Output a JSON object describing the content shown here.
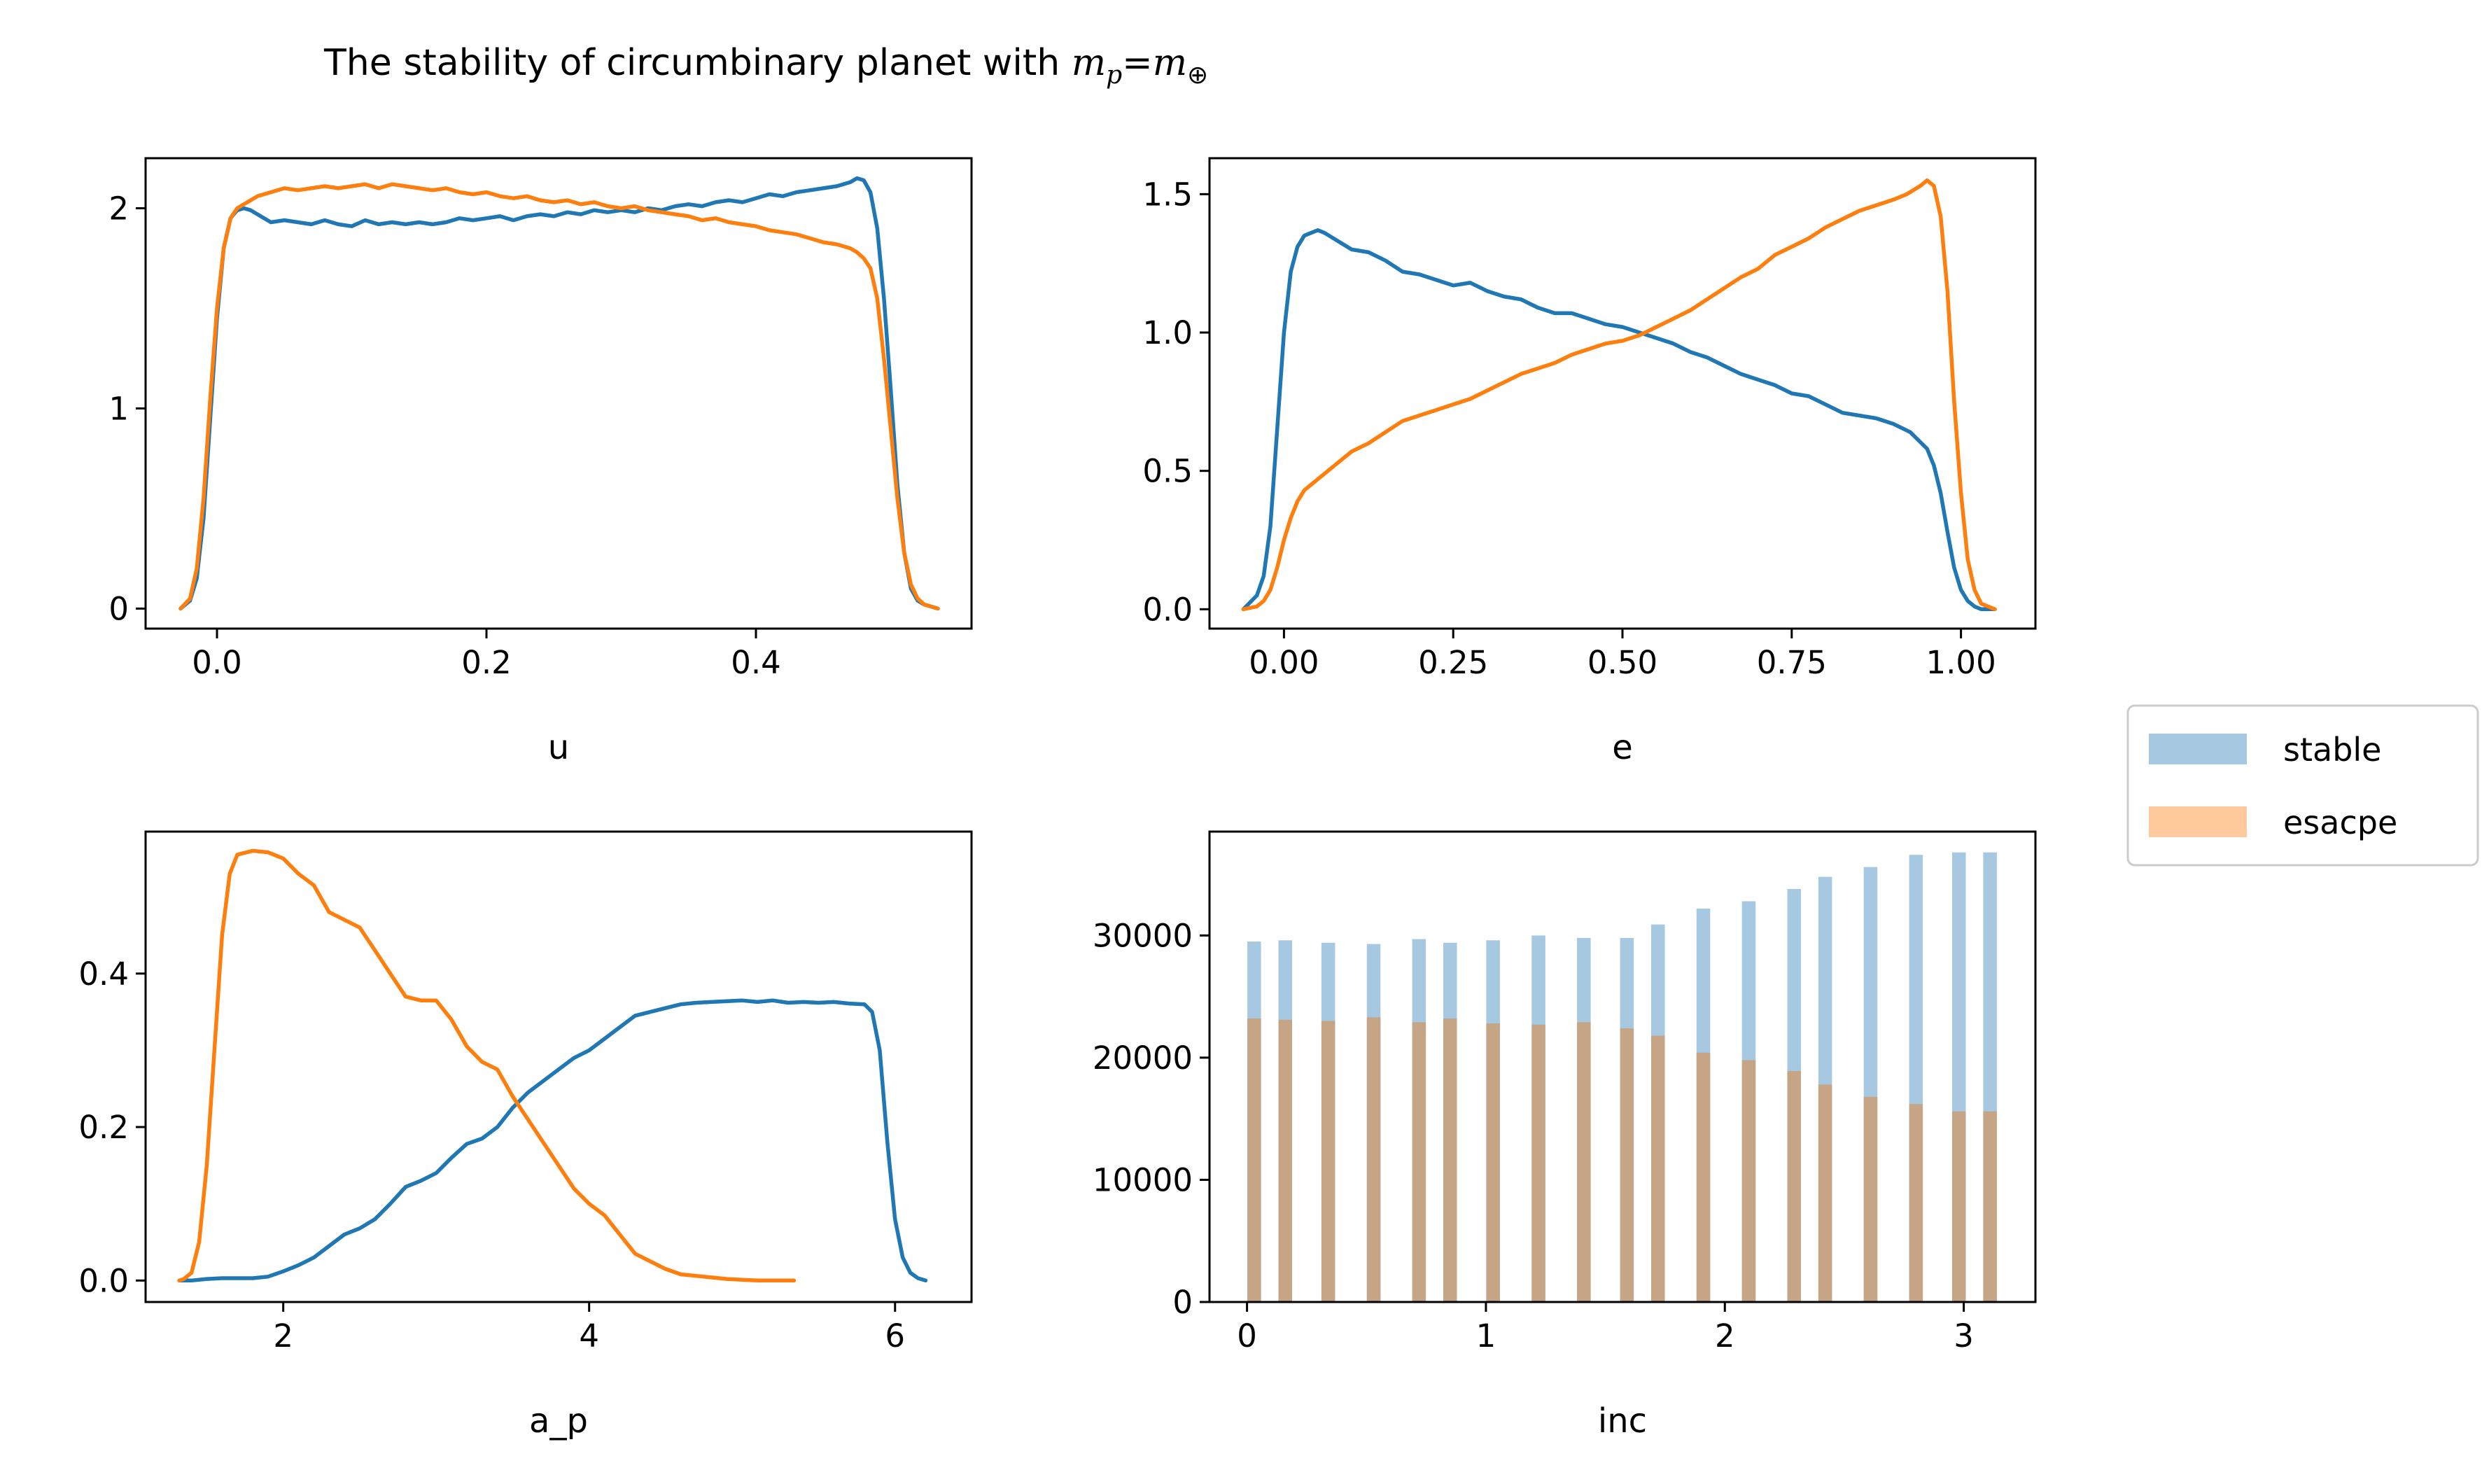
{
  "figure": {
    "title_prefix": "The stability of circumbinary planet with ",
    "title_math_lhs": "m",
    "title_math_lhs_sub": "p",
    "title_equals": "=",
    "title_math_rhs": "m",
    "title_math_rhs_sub": "⊕"
  },
  "colors": {
    "stable": "#1f77b4",
    "escape": "#ff7f0e",
    "stable_bar": "#a6c8e1",
    "escape_bar": "#c6a586"
  },
  "legend": {
    "placement": "right",
    "entries": [
      {
        "label": "stable",
        "color": "#a6c8e1"
      },
      {
        "label": "esacpe",
        "color": "#ffc99e"
      }
    ]
  },
  "chart_data": [
    {
      "type": "line",
      "xlabel": "u",
      "ylabel": "",
      "xlim": [
        -0.053,
        0.56
      ],
      "ylim": [
        -0.1,
        2.25
      ],
      "xticks": [
        0.0,
        0.2,
        0.4
      ],
      "xtick_labels": [
        "0.0",
        "0.2",
        "0.4"
      ],
      "yticks": [
        0,
        1,
        2
      ],
      "ytick_labels": [
        "0",
        "1",
        "2"
      ],
      "series": [
        {
          "key": "stable",
          "color": "#1f77b4",
          "x": [
            -0.027,
            -0.02,
            -0.015,
            -0.01,
            -0.005,
            0.0,
            0.005,
            0.01,
            0.015,
            0.02,
            0.025,
            0.03,
            0.04,
            0.05,
            0.06,
            0.07,
            0.08,
            0.09,
            0.1,
            0.11,
            0.12,
            0.13,
            0.14,
            0.15,
            0.16,
            0.17,
            0.18,
            0.19,
            0.2,
            0.21,
            0.22,
            0.23,
            0.24,
            0.25,
            0.26,
            0.27,
            0.28,
            0.29,
            0.3,
            0.31,
            0.32,
            0.33,
            0.34,
            0.35,
            0.36,
            0.37,
            0.38,
            0.39,
            0.4,
            0.41,
            0.42,
            0.43,
            0.44,
            0.45,
            0.46,
            0.47,
            0.475,
            0.48,
            0.485,
            0.49,
            0.495,
            0.5,
            0.505,
            0.51,
            0.515,
            0.52,
            0.525,
            0.53,
            0.535
          ],
          "y": [
            0.0,
            0.04,
            0.15,
            0.45,
            0.95,
            1.45,
            1.8,
            1.95,
            1.99,
            2.0,
            1.99,
            1.97,
            1.93,
            1.94,
            1.93,
            1.92,
            1.94,
            1.92,
            1.91,
            1.94,
            1.92,
            1.93,
            1.92,
            1.93,
            1.92,
            1.93,
            1.95,
            1.94,
            1.95,
            1.96,
            1.94,
            1.96,
            1.97,
            1.96,
            1.98,
            1.97,
            1.99,
            1.98,
            1.99,
            1.98,
            2.0,
            1.99,
            2.01,
            2.02,
            2.01,
            2.03,
            2.04,
            2.03,
            2.05,
            2.07,
            2.06,
            2.08,
            2.09,
            2.1,
            2.11,
            2.13,
            2.15,
            2.14,
            2.08,
            1.9,
            1.55,
            1.1,
            0.62,
            0.28,
            0.1,
            0.04,
            0.02,
            0.01,
            0.0
          ]
        },
        {
          "key": "escape",
          "color": "#ff7f0e",
          "x": [
            -0.027,
            -0.02,
            -0.015,
            -0.01,
            -0.005,
            0.0,
            0.005,
            0.01,
            0.015,
            0.02,
            0.025,
            0.03,
            0.04,
            0.05,
            0.06,
            0.07,
            0.08,
            0.09,
            0.1,
            0.11,
            0.12,
            0.13,
            0.14,
            0.15,
            0.16,
            0.17,
            0.18,
            0.19,
            0.2,
            0.21,
            0.22,
            0.23,
            0.24,
            0.25,
            0.26,
            0.27,
            0.28,
            0.29,
            0.3,
            0.31,
            0.32,
            0.33,
            0.34,
            0.35,
            0.36,
            0.37,
            0.38,
            0.39,
            0.4,
            0.41,
            0.42,
            0.43,
            0.44,
            0.45,
            0.46,
            0.47,
            0.475,
            0.48,
            0.485,
            0.49,
            0.495,
            0.5,
            0.505,
            0.51,
            0.515,
            0.52,
            0.525,
            0.53,
            0.535
          ],
          "y": [
            0.0,
            0.05,
            0.2,
            0.55,
            1.05,
            1.5,
            1.8,
            1.95,
            2.0,
            2.02,
            2.04,
            2.06,
            2.08,
            2.1,
            2.09,
            2.1,
            2.11,
            2.1,
            2.11,
            2.12,
            2.1,
            2.12,
            2.11,
            2.1,
            2.09,
            2.1,
            2.08,
            2.07,
            2.08,
            2.06,
            2.05,
            2.06,
            2.04,
            2.03,
            2.04,
            2.02,
            2.03,
            2.01,
            2.0,
            2.01,
            1.99,
            1.98,
            1.97,
            1.96,
            1.94,
            1.95,
            1.93,
            1.92,
            1.91,
            1.89,
            1.88,
            1.87,
            1.85,
            1.83,
            1.82,
            1.8,
            1.78,
            1.75,
            1.7,
            1.55,
            1.25,
            0.9,
            0.55,
            0.28,
            0.12,
            0.05,
            0.02,
            0.01,
            0.0
          ]
        }
      ]
    },
    {
      "type": "line",
      "xlabel": "e",
      "ylabel": "",
      "xlim": [
        -0.11,
        1.11
      ],
      "ylim": [
        -0.07,
        1.63
      ],
      "xticks": [
        0.0,
        0.25,
        0.5,
        0.75,
        1.0
      ],
      "xtick_labels": [
        "0.00",
        "0.25",
        "0.50",
        "0.75",
        "1.00"
      ],
      "yticks": [
        0.0,
        0.5,
        1.0,
        1.5
      ],
      "ytick_labels": [
        "0.0",
        "0.5",
        "1.0",
        "1.5"
      ],
      "series": [
        {
          "key": "stable",
          "color": "#1f77b4",
          "x": [
            -0.06,
            -0.04,
            -0.03,
            -0.02,
            -0.01,
            0.0,
            0.01,
            0.02,
            0.03,
            0.04,
            0.05,
            0.06,
            0.08,
            0.1,
            0.125,
            0.15,
            0.175,
            0.2,
            0.225,
            0.25,
            0.275,
            0.3,
            0.325,
            0.35,
            0.375,
            0.4,
            0.425,
            0.45,
            0.475,
            0.5,
            0.525,
            0.55,
            0.575,
            0.6,
            0.625,
            0.65,
            0.675,
            0.7,
            0.725,
            0.75,
            0.775,
            0.8,
            0.825,
            0.85,
            0.875,
            0.9,
            0.925,
            0.95,
            0.96,
            0.97,
            0.98,
            0.99,
            1.0,
            1.01,
            1.02,
            1.03,
            1.04,
            1.05
          ],
          "y": [
            0.0,
            0.05,
            0.12,
            0.3,
            0.65,
            1.0,
            1.22,
            1.31,
            1.35,
            1.36,
            1.37,
            1.36,
            1.33,
            1.3,
            1.29,
            1.26,
            1.22,
            1.21,
            1.19,
            1.17,
            1.18,
            1.15,
            1.13,
            1.12,
            1.09,
            1.07,
            1.07,
            1.05,
            1.03,
            1.02,
            1.0,
            0.98,
            0.96,
            0.93,
            0.91,
            0.88,
            0.85,
            0.83,
            0.81,
            0.78,
            0.77,
            0.74,
            0.71,
            0.7,
            0.69,
            0.67,
            0.64,
            0.58,
            0.52,
            0.42,
            0.28,
            0.15,
            0.07,
            0.03,
            0.01,
            0.0,
            0.0,
            0.0
          ]
        },
        {
          "key": "escape",
          "color": "#ff7f0e",
          "x": [
            -0.06,
            -0.04,
            -0.03,
            -0.02,
            -0.01,
            0.0,
            0.01,
            0.02,
            0.03,
            0.04,
            0.05,
            0.06,
            0.08,
            0.1,
            0.125,
            0.15,
            0.175,
            0.2,
            0.225,
            0.25,
            0.275,
            0.3,
            0.325,
            0.35,
            0.375,
            0.4,
            0.425,
            0.45,
            0.475,
            0.5,
            0.525,
            0.55,
            0.575,
            0.6,
            0.625,
            0.65,
            0.675,
            0.7,
            0.725,
            0.75,
            0.775,
            0.8,
            0.825,
            0.85,
            0.875,
            0.9,
            0.92,
            0.94,
            0.95,
            0.96,
            0.97,
            0.98,
            0.99,
            1.0,
            1.01,
            1.02,
            1.03,
            1.05
          ],
          "y": [
            0.0,
            0.01,
            0.03,
            0.07,
            0.15,
            0.25,
            0.33,
            0.39,
            0.43,
            0.45,
            0.47,
            0.49,
            0.53,
            0.57,
            0.6,
            0.64,
            0.68,
            0.7,
            0.72,
            0.74,
            0.76,
            0.79,
            0.82,
            0.85,
            0.87,
            0.89,
            0.92,
            0.94,
            0.96,
            0.97,
            0.99,
            1.02,
            1.05,
            1.08,
            1.12,
            1.16,
            1.2,
            1.23,
            1.28,
            1.31,
            1.34,
            1.38,
            1.41,
            1.44,
            1.46,
            1.48,
            1.5,
            1.53,
            1.55,
            1.53,
            1.42,
            1.15,
            0.75,
            0.42,
            0.18,
            0.07,
            0.02,
            0.0
          ]
        }
      ]
    },
    {
      "type": "line",
      "xlabel": "a_p",
      "ylabel": "",
      "xlim": [
        1.1,
        6.5
      ],
      "ylim": [
        -0.028,
        0.585
      ],
      "xticks": [
        2,
        4,
        6
      ],
      "xtick_labels": [
        "2",
        "4",
        "6"
      ],
      "yticks": [
        0.0,
        0.2,
        0.4
      ],
      "ytick_labels": [
        "0.0",
        "0.2",
        "0.4"
      ],
      "series": [
        {
          "key": "stable",
          "color": "#1f77b4",
          "x": [
            1.32,
            1.4,
            1.5,
            1.6,
            1.7,
            1.8,
            1.9,
            2.0,
            2.1,
            2.2,
            2.3,
            2.4,
            2.5,
            2.6,
            2.7,
            2.8,
            2.9,
            3.0,
            3.1,
            3.2,
            3.3,
            3.4,
            3.5,
            3.6,
            3.7,
            3.8,
            3.9,
            4.0,
            4.1,
            4.2,
            4.3,
            4.4,
            4.5,
            4.6,
            4.7,
            4.8,
            4.9,
            5.0,
            5.1,
            5.2,
            5.3,
            5.4,
            5.5,
            5.6,
            5.7,
            5.8,
            5.85,
            5.9,
            5.95,
            6.0,
            6.05,
            6.1,
            6.15,
            6.2
          ],
          "y": [
            0.0,
            0.0,
            0.002,
            0.003,
            0.003,
            0.003,
            0.005,
            0.012,
            0.02,
            0.03,
            0.045,
            0.06,
            0.068,
            0.08,
            0.1,
            0.122,
            0.13,
            0.14,
            0.16,
            0.178,
            0.185,
            0.2,
            0.225,
            0.245,
            0.26,
            0.275,
            0.29,
            0.3,
            0.315,
            0.33,
            0.345,
            0.35,
            0.355,
            0.36,
            0.362,
            0.363,
            0.364,
            0.365,
            0.363,
            0.365,
            0.362,
            0.363,
            0.362,
            0.363,
            0.361,
            0.36,
            0.35,
            0.3,
            0.18,
            0.08,
            0.03,
            0.01,
            0.003,
            0.0
          ]
        },
        {
          "key": "escape",
          "color": "#ff7f0e",
          "x": [
            1.32,
            1.35,
            1.4,
            1.45,
            1.5,
            1.55,
            1.6,
            1.65,
            1.7,
            1.8,
            1.9,
            2.0,
            2.1,
            2.2,
            2.3,
            2.4,
            2.5,
            2.6,
            2.7,
            2.8,
            2.9,
            3.0,
            3.1,
            3.2,
            3.3,
            3.4,
            3.5,
            3.6,
            3.7,
            3.8,
            3.9,
            4.0,
            4.1,
            4.2,
            4.3,
            4.4,
            4.5,
            4.6,
            4.7,
            4.8,
            4.9,
            5.0,
            5.1,
            5.2,
            5.34
          ],
          "y": [
            0.0,
            0.002,
            0.01,
            0.05,
            0.15,
            0.3,
            0.45,
            0.53,
            0.555,
            0.56,
            0.558,
            0.55,
            0.53,
            0.515,
            0.48,
            0.47,
            0.46,
            0.43,
            0.4,
            0.37,
            0.365,
            0.365,
            0.34,
            0.305,
            0.285,
            0.275,
            0.24,
            0.21,
            0.18,
            0.15,
            0.12,
            0.1,
            0.085,
            0.06,
            0.035,
            0.025,
            0.015,
            0.008,
            0.006,
            0.004,
            0.002,
            0.001,
            0.0,
            0.0,
            0.0
          ]
        }
      ]
    },
    {
      "type": "bar",
      "xlabel": "inc",
      "ylabel": "",
      "xlim": [
        -0.157,
        3.3
      ],
      "ylim": [
        0,
        38500
      ],
      "xticks": [
        0,
        1,
        2,
        3
      ],
      "xtick_labels": [
        "0",
        "1",
        "2",
        "3"
      ],
      "yticks": [
        0,
        10000,
        20000,
        30000
      ],
      "ytick_labels": [
        "0",
        "10000",
        "20000",
        "30000"
      ],
      "bar_width": 0.057,
      "x": [
        0.03,
        0.16,
        0.34,
        0.53,
        0.72,
        0.85,
        1.03,
        1.22,
        1.41,
        1.59,
        1.72,
        1.91,
        2.1,
        2.29,
        2.42,
        2.61,
        2.8,
        2.98,
        3.11
      ],
      "series": [
        {
          "key": "stable",
          "name": "stable",
          "color": "#a6c8e1",
          "values": [
            29500,
            29600,
            29400,
            29300,
            29700,
            29400,
            29600,
            30000,
            29800,
            29800,
            30900,
            32200,
            32800,
            33800,
            34800,
            35600,
            36600,
            36800,
            36800
          ]
        },
        {
          "key": "escape",
          "name": "esacpe",
          "color": "#c6a586",
          "values": [
            23200,
            23100,
            23000,
            23300,
            22900,
            23200,
            22800,
            22700,
            22900,
            22400,
            21800,
            20400,
            19800,
            18900,
            17800,
            16800,
            16200,
            15600,
            15600
          ]
        }
      ]
    }
  ]
}
